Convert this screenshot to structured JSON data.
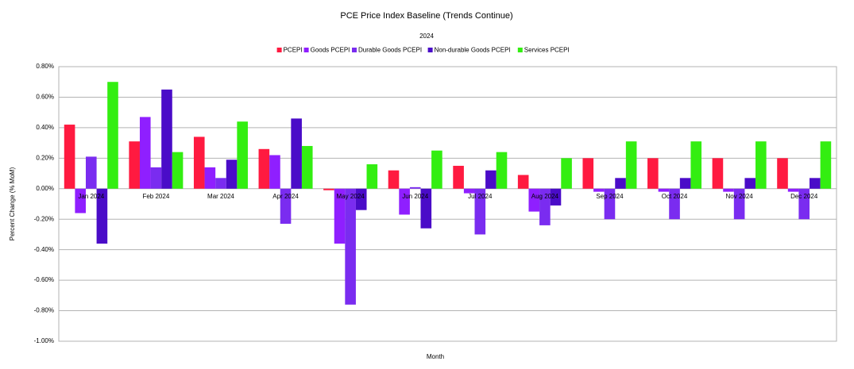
{
  "chart_data": {
    "type": "bar",
    "title": "PCE Price Index Baseline (Trends Continue)",
    "subtitle": "2024",
    "x_label": "Month",
    "y_label": "Percent Change (% MoM)",
    "categories": [
      "Jan 2024",
      "Feb 2024",
      "Mar 2024",
      "Apr 2024",
      "May 2024",
      "Jun 2024",
      "Jul 2024",
      "Aug 2024",
      "Sep 2024",
      "Oct 2024",
      "Nov 2024",
      "Dec 2024"
    ],
    "series": [
      {
        "name": "PCEPI",
        "color": "#ff1a40",
        "values": [
          0.42,
          0.31,
          0.34,
          0.26,
          -0.01,
          0.12,
          0.15,
          0.09,
          0.2,
          0.2,
          0.2,
          0.2
        ]
      },
      {
        "name": "Goods PCEPI",
        "color": "#8f1fff",
        "values": [
          -0.16,
          0.47,
          0.14,
          0.22,
          -0.36,
          -0.17,
          -0.03,
          -0.15,
          -0.02,
          -0.02,
          -0.02,
          -0.02
        ]
      },
      {
        "name": "Durable Goods PCEPI",
        "color": "#7a2cf0",
        "values": [
          0.21,
          0.14,
          0.07,
          -0.23,
          -0.76,
          0.01,
          -0.3,
          -0.24,
          -0.2,
          -0.2,
          -0.2,
          -0.2
        ]
      },
      {
        "name": "Non-durable Goods PCEPI",
        "color": "#4a0cc8",
        "values": [
          -0.36,
          0.65,
          0.19,
          0.46,
          -0.14,
          -0.26,
          0.12,
          -0.11,
          0.07,
          0.07,
          0.07,
          0.07
        ]
      },
      {
        "name": "Services PCEPI",
        "color": "#33ee11",
        "values": [
          0.7,
          0.24,
          0.44,
          0.28,
          0.16,
          0.25,
          0.24,
          0.2,
          0.31,
          0.31,
          0.31,
          0.31
        ]
      }
    ],
    "ylim": [
      -1.0,
      0.8
    ],
    "yticks": [
      {
        "value": -1.0,
        "label": "-1.00%"
      },
      {
        "value": -0.8,
        "label": "-0.80%"
      },
      {
        "value": -0.6,
        "label": "-0.60%"
      },
      {
        "value": -0.4,
        "label": "-0.40%"
      },
      {
        "value": -0.2,
        "label": "-0.20%"
      },
      {
        "value": 0,
        "label": "0.00%"
      },
      {
        "value": 0.2,
        "label": "0.20%"
      },
      {
        "value": 0.4,
        "label": "0.40%"
      },
      {
        "value": 0.6,
        "label": "0.60%"
      },
      {
        "value": 0.8,
        "label": "0.80%"
      }
    ],
    "grid": true,
    "legend": "top"
  }
}
